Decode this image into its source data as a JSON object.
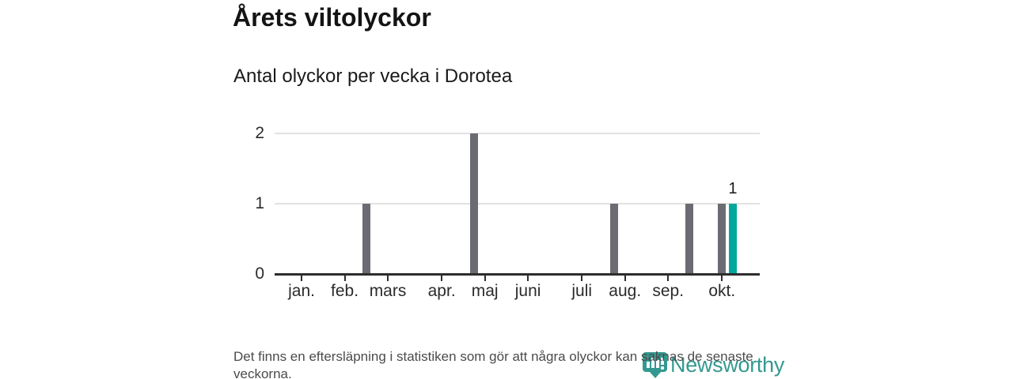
{
  "title": "Årets viltolyckor",
  "subtitle": "Antal olyckor per vecka i Dorotea",
  "footnote": "Det finns en eftersläpning i statistiken som gör att några olyckor kan saknas de senaste veckorna.",
  "logo": {
    "text": "Newsworthy",
    "color": "#339990"
  },
  "chart_data": {
    "type": "bar",
    "title": "Årets viltolyckor",
    "subtitle": "Antal olyckor per vecka i Dorotea",
    "x_unit": "week",
    "x_domain_weeks": [
      1,
      45
    ],
    "ylim": [
      0,
      2
    ],
    "yticks": [
      0,
      1,
      2
    ],
    "grid": "horizontal",
    "legend": "none",
    "bar_color": "#6b6b73",
    "highlight_color": "#00a79c",
    "month_ticks": [
      {
        "label": "jan.",
        "week": 3
      },
      {
        "label": "feb.",
        "week": 7
      },
      {
        "label": "mars",
        "week": 11
      },
      {
        "label": "apr.",
        "week": 16
      },
      {
        "label": "maj",
        "week": 20
      },
      {
        "label": "juni",
        "week": 24
      },
      {
        "label": "juli",
        "week": 29
      },
      {
        "label": "aug.",
        "week": 33
      },
      {
        "label": "sep.",
        "week": 37
      },
      {
        "label": "okt.",
        "week": 42
      }
    ],
    "bars": [
      {
        "week": 9,
        "value": 1,
        "highlight": false
      },
      {
        "week": 19,
        "value": 2,
        "highlight": false
      },
      {
        "week": 32,
        "value": 1,
        "highlight": false
      },
      {
        "week": 39,
        "value": 1,
        "highlight": false
      },
      {
        "week": 42,
        "value": 1,
        "highlight": false
      },
      {
        "week": 43,
        "value": 1,
        "highlight": true,
        "label": "1"
      }
    ]
  }
}
